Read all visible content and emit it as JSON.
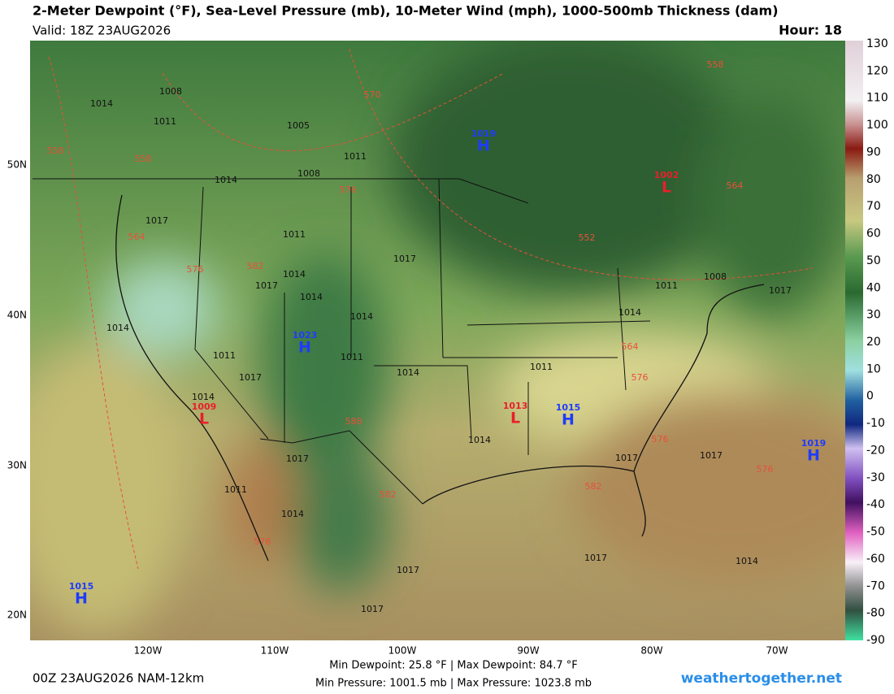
{
  "header": {
    "title": "2-Meter Dewpoint (°F), Sea-Level Pressure (mb), 10-Meter Wind (mph), 1000-500mb Thickness (dam)",
    "valid": "Valid: 18Z 23AUG2026",
    "hour": "Hour: 18"
  },
  "colorbar": {
    "labels": [
      130,
      120,
      110,
      100,
      90,
      80,
      70,
      60,
      50,
      40,
      30,
      20,
      10,
      0,
      -10,
      -20,
      -30,
      -40,
      -50,
      -60,
      -70,
      -80,
      -90
    ]
  },
  "axes": {
    "lat": [
      "50N",
      "40N",
      "30N",
      "20N"
    ],
    "lon": [
      "120W",
      "110W",
      "100W",
      "90W",
      "80W",
      "70W"
    ]
  },
  "highs": [
    {
      "pressure": "1019",
      "letter": "H"
    },
    {
      "pressure": "1023",
      "letter": "H"
    },
    {
      "pressure": "1015",
      "letter": "H"
    },
    {
      "pressure": "1019",
      "letter": "H"
    },
    {
      "pressure": "1015",
      "letter": "H"
    }
  ],
  "lows": [
    {
      "pressure": "1002",
      "letter": "L"
    },
    {
      "pressure": "1009",
      "letter": "L"
    },
    {
      "pressure": "1013",
      "letter": "L"
    }
  ],
  "isobars": [
    "1014",
    "1008",
    "1011",
    "1005",
    "1011",
    "1008",
    "1014",
    "1017",
    "1011",
    "1017",
    "1014",
    "1017",
    "1014",
    "1011",
    "1014",
    "1014",
    "1011",
    "1008",
    "1011",
    "1014",
    "1017",
    "1014",
    "1011",
    "1014",
    "1017",
    "1017",
    "1017",
    "1014",
    "1017",
    "1011",
    "1014",
    "1017",
    "1014",
    "1017",
    "1017"
  ],
  "thickness": [
    "558",
    "558",
    "570",
    "576",
    "564",
    "576",
    "582",
    "552",
    "564",
    "576",
    "588",
    "582",
    "576",
    "576",
    "582",
    "576",
    "564",
    "558"
  ],
  "footer": {
    "run": "00Z 23AUG2026 NAM-12km",
    "dewpoint": "Min Dewpoint: 25.8 °F | Max Dewpoint: 84.7 °F",
    "pressure": "Min Pressure: 1001.5 mb | Max Pressure: 1023.8 mb",
    "credit": "weathertogether.net"
  }
}
